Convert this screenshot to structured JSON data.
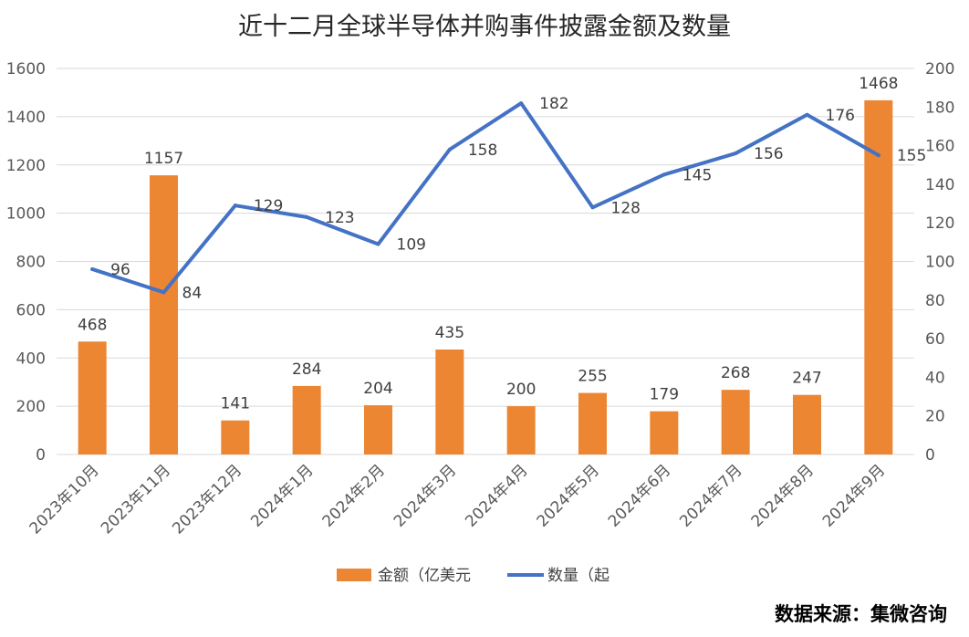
{
  "chart_data": {
    "type": "bar+line",
    "title": "近十二月全球半导体并购事件披露金额及数量",
    "categories": [
      "2023年10月",
      "2023年11月",
      "2023年12月",
      "2024年1月",
      "2024年2月",
      "2024年3月",
      "2024年4月",
      "2024年5月",
      "2024年6月",
      "2024年7月",
      "2024年8月",
      "2024年9月"
    ],
    "series": [
      {
        "name": "金额（亿美元",
        "type": "bar",
        "axis": "left",
        "color": "#ED8632",
        "values": [
          468,
          1157,
          141,
          284,
          204,
          435,
          200,
          255,
          179,
          268,
          247,
          1468
        ]
      },
      {
        "name": "数量（起",
        "type": "line",
        "axis": "right",
        "color": "#4472C4",
        "values": [
          96,
          84,
          129,
          123,
          109,
          158,
          182,
          128,
          145,
          156,
          176,
          155
        ]
      }
    ],
    "y_left": {
      "min": 0,
      "max": 1600,
      "ticks": [
        0,
        200,
        400,
        600,
        800,
        1000,
        1200,
        1400,
        1600
      ]
    },
    "y_right": {
      "min": 0,
      "max": 200,
      "ticks": [
        0,
        20,
        40,
        60,
        80,
        100,
        120,
        140,
        160,
        180,
        200
      ]
    },
    "grid": true,
    "legend_position": "bottom"
  },
  "source": "数据来源：集微咨询"
}
